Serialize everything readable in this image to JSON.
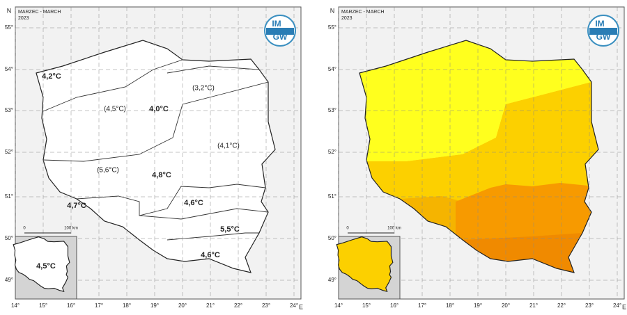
{
  "panels": [
    {
      "title": "MARZEC - MARCH",
      "year": "2023",
      "logo_top": "IM",
      "logo_bottom": "GW",
      "scale_start": "0",
      "scale_end": "100 km",
      "labels": [
        {
          "text": "4,2°C",
          "bold": true
        },
        {
          "text": "(4,5°C)",
          "bold": false
        },
        {
          "text": "4,0°C",
          "bold": true
        },
        {
          "text": "(3,2°C)",
          "bold": false
        },
        {
          "text": "(4,1°C)",
          "bold": false
        },
        {
          "text": "(5,6°C)",
          "bold": false
        },
        {
          "text": "4,8°C",
          "bold": true
        },
        {
          "text": "4,6°C",
          "bold": true
        },
        {
          "text": "4,7°C",
          "bold": true
        },
        {
          "text": "5,5°C",
          "bold": true
        },
        {
          "text": "4,6°C",
          "bold": true
        },
        {
          "text": "4,5°C",
          "bold": true
        }
      ]
    },
    {
      "title": "MARZEC - MARCH",
      "year": "2023",
      "logo_top": "IM",
      "logo_bottom": "GW",
      "scale_start": "0",
      "scale_end": "100 km",
      "labels": []
    }
  ],
  "lat_ticks": [
    "55°",
    "54°",
    "53°",
    "52°",
    "51°",
    "50°",
    "49°"
  ],
  "lon_ticks": [
    "14°",
    "15°",
    "16°",
    "17°",
    "18°",
    "19°",
    "20°",
    "21°",
    "22°",
    "23°",
    "24°"
  ],
  "north": "N",
  "east": "E"
}
